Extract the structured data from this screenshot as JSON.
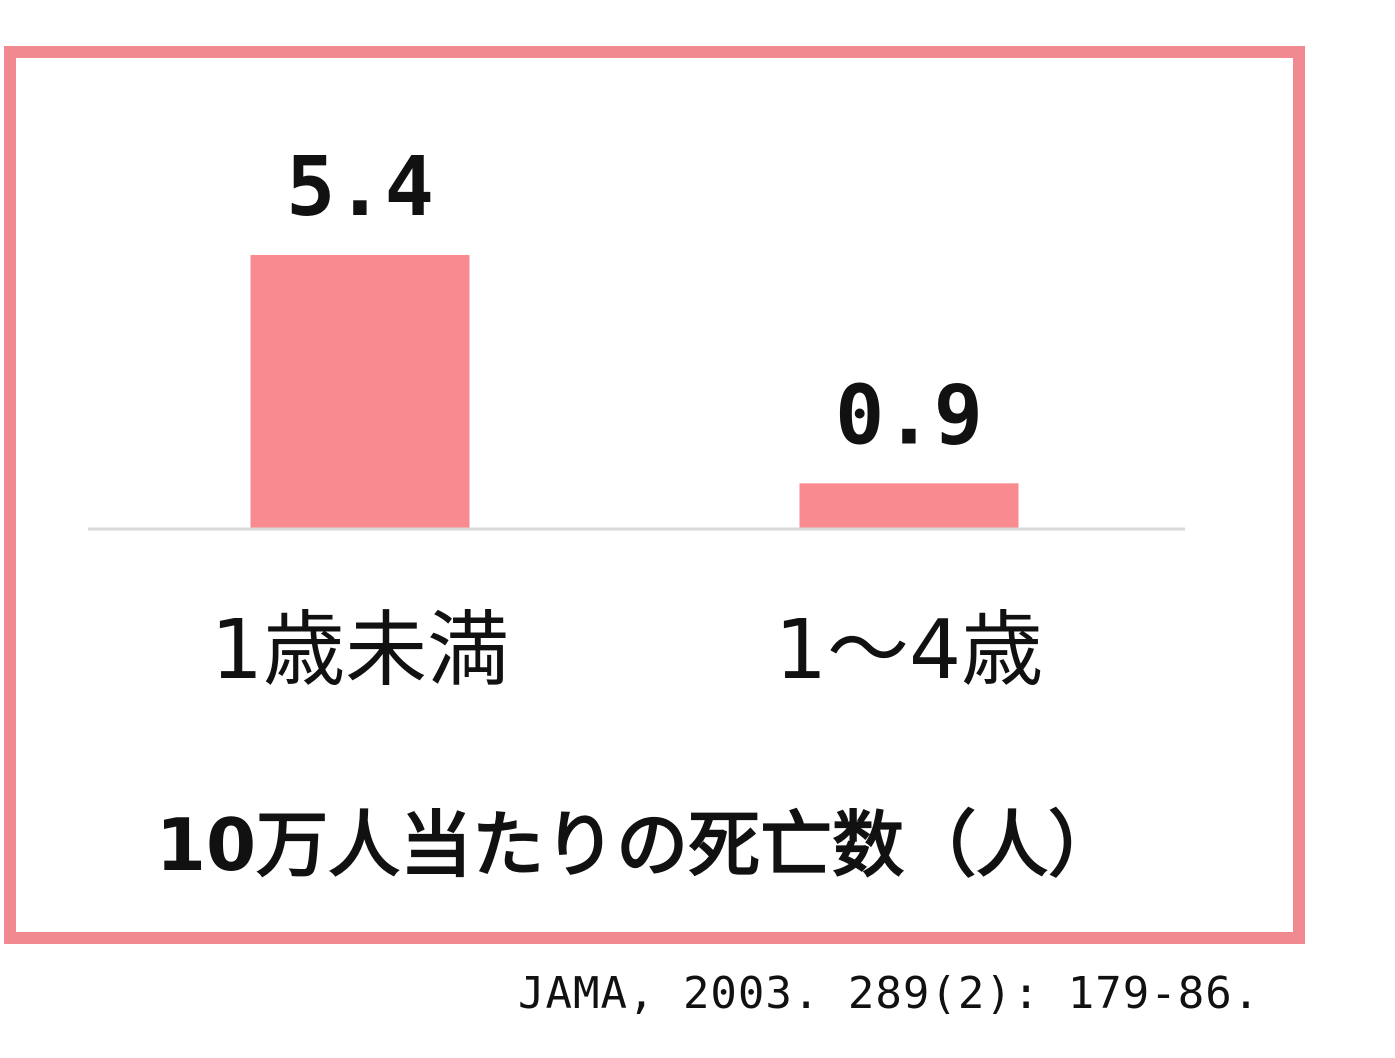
{
  "chart_data": {
    "type": "bar",
    "categories": [
      "1歳未満",
      "1～4歳"
    ],
    "values": [
      5.4,
      0.9
    ],
    "value_labels": [
      "5.4",
      "0.9"
    ],
    "title": "10万人当たりの死亡数（人）",
    "xlabel": "",
    "ylabel": "",
    "ylim": [
      0,
      5.4
    ],
    "grid": false,
    "legend": "none"
  },
  "citation": "JAMA, 2003. 289(2): 179-86.",
  "colors": {
    "bar": "#f88a90",
    "frame": "#f08a90",
    "baseline": "#d9d9d9",
    "text": "#111111"
  }
}
